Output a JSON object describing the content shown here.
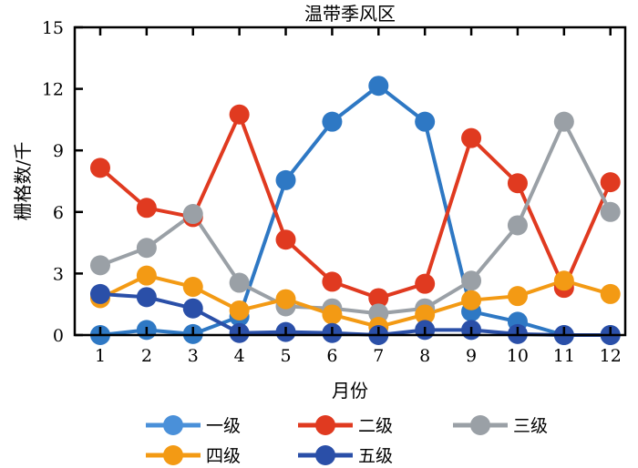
{
  "chart_data": {
    "type": "line",
    "title": "温带季风区",
    "xlabel": "月份",
    "ylabel": "栅格数/千",
    "x": [
      1,
      2,
      3,
      4,
      5,
      6,
      7,
      8,
      9,
      10,
      11,
      12
    ],
    "xticks": [
      "1",
      "2",
      "3",
      "4",
      "5",
      "6",
      "7",
      "8",
      "9",
      "10",
      "11",
      "12"
    ],
    "yticks": [
      "0",
      "3",
      "6",
      "9",
      "12",
      "15"
    ],
    "ylim": [
      0,
      15
    ],
    "xlim": [
      0.45,
      12.32
    ],
    "grid": false,
    "legend": "bottom",
    "series": [
      {
        "name": "一级",
        "color": "#2e78c4",
        "legend_color": "#4a90d9",
        "values": [
          0,
          0.25,
          0.05,
          0.9,
          7.55,
          10.4,
          12.15,
          10.4,
          1.15,
          0.65,
          0,
          0
        ]
      },
      {
        "name": "二级",
        "color": "#e03a20",
        "legend_color": "#e03a20",
        "values": [
          8.15,
          6.2,
          5.75,
          10.75,
          4.65,
          2.6,
          1.8,
          2.5,
          9.6,
          7.4,
          2.3,
          7.45
        ]
      },
      {
        "name": "三级",
        "color": "#9aa0a6",
        "legend_color": "#9aa0a6",
        "values": [
          3.4,
          4.25,
          5.9,
          2.55,
          1.4,
          1.3,
          1.05,
          1.3,
          2.65,
          5.35,
          10.4,
          6.0
        ]
      },
      {
        "name": "四级",
        "color": "#f39a14",
        "legend_color": "#f39a14",
        "values": [
          1.8,
          2.9,
          2.35,
          1.2,
          1.75,
          1.0,
          0.4,
          1.0,
          1.7,
          1.9,
          2.65,
          2.0
        ]
      },
      {
        "name": "五级",
        "color": "#2a4fa8",
        "legend_color": "#2a4fa8",
        "values": [
          2.0,
          1.85,
          1.3,
          0.1,
          0.15,
          0.1,
          0,
          0.25,
          0.25,
          0.05,
          0,
          0
        ]
      }
    ]
  }
}
